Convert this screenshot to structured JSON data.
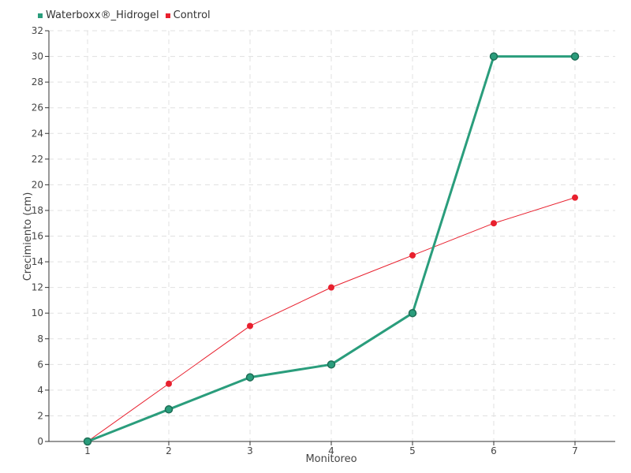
{
  "chart_data": {
    "type": "line",
    "title": "",
    "xlabel": "Monitoreo",
    "ylabel": "Crecimiento (cm)",
    "categories": [
      "1",
      "2",
      "3",
      "4",
      "5",
      "6",
      "7"
    ],
    "ylim": [
      0,
      32
    ],
    "yticks": [
      0,
      2,
      4,
      6,
      8,
      10,
      12,
      14,
      16,
      18,
      20,
      22,
      24,
      26,
      28,
      30,
      32
    ],
    "grid": true,
    "legend_position": "top-left",
    "series": [
      {
        "name": "Waterboxx®_Hidrogel",
        "color": "#2a9d7c",
        "values": [
          0,
          2.5,
          5,
          6,
          10,
          30,
          30
        ]
      },
      {
        "name": "Control",
        "color": "#e8202e",
        "values": [
          0,
          4.5,
          9,
          12,
          14.5,
          17,
          19
        ]
      }
    ]
  }
}
